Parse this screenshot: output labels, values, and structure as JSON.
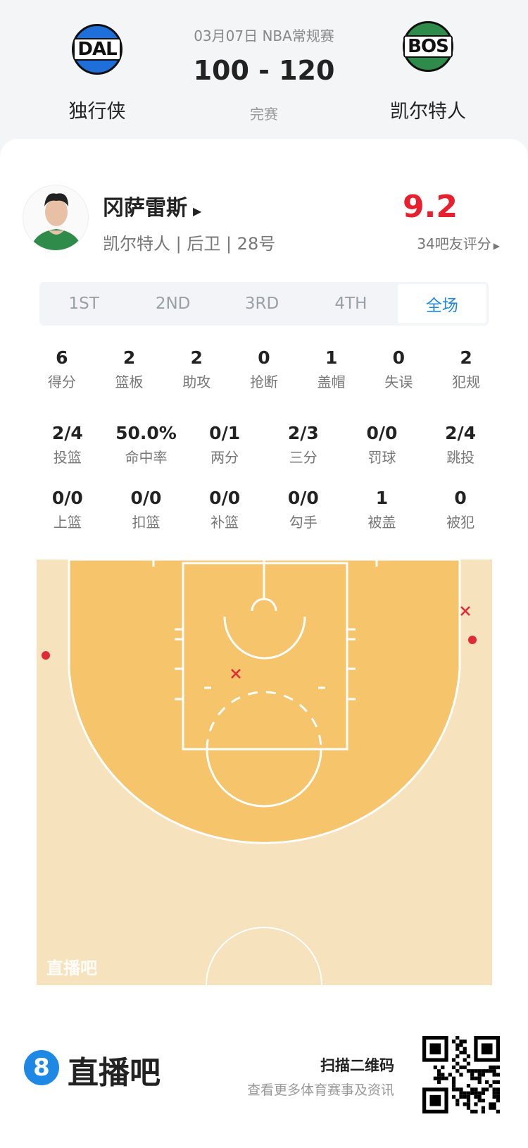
{
  "match": {
    "date_league": "03月07日 NBA常规赛",
    "score": "100 - 120",
    "status": "完赛",
    "home": {
      "abbr": "DAL",
      "name": "独行侠",
      "color": "#1e6fd9"
    },
    "away": {
      "abbr": "BOS",
      "name": "凯尔特人",
      "color": "#2e8b4a"
    }
  },
  "player": {
    "name": "冈萨雷斯",
    "info": "凯尔特人 | 后卫 | 28号",
    "rating": "9.2",
    "rating_label": "34吧友评分",
    "rating_color": "#e8202e"
  },
  "tabs": [
    {
      "label": "1ST"
    },
    {
      "label": "2ND"
    },
    {
      "label": "3RD"
    },
    {
      "label": "4TH"
    },
    {
      "label": "全场",
      "active": true
    }
  ],
  "stats_row1": [
    {
      "v": "6",
      "l": "得分"
    },
    {
      "v": "2",
      "l": "篮板"
    },
    {
      "v": "2",
      "l": "助攻"
    },
    {
      "v": "0",
      "l": "抢断"
    },
    {
      "v": "1",
      "l": "盖帽"
    },
    {
      "v": "0",
      "l": "失误"
    },
    {
      "v": "2",
      "l": "犯规"
    }
  ],
  "stats_row2": [
    {
      "v": "2/4",
      "l": "投篮"
    },
    {
      "v": "50.0%",
      "l": "命中率"
    },
    {
      "v": "0/1",
      "l": "两分"
    },
    {
      "v": "2/3",
      "l": "三分"
    },
    {
      "v": "0/0",
      "l": "罚球"
    },
    {
      "v": "2/4",
      "l": "跳投"
    }
  ],
  "stats_row3": [
    {
      "v": "0/0",
      "l": "上篮"
    },
    {
      "v": "0/0",
      "l": "扣篮"
    },
    {
      "v": "0/0",
      "l": "补篮"
    },
    {
      "v": "0/0",
      "l": "勾手"
    },
    {
      "v": "1",
      "l": "被盖"
    },
    {
      "v": "0",
      "l": "被犯"
    }
  ],
  "shot_chart": {
    "made_marker": "dot",
    "missed_marker": "x",
    "marker_color": "#e02a35",
    "watermark": "直播吧",
    "shots": [
      {
        "result": "made",
        "type": "三分"
      },
      {
        "result": "missed",
        "type": "三分"
      },
      {
        "result": "made",
        "type": "三分"
      },
      {
        "result": "missed",
        "type": "两分"
      }
    ]
  },
  "footer": {
    "brand": "直播吧",
    "brand_mark": "8",
    "brand_color": "#1e88e5",
    "qr_title": "扫描二维码",
    "qr_sub": "查看更多体育赛事及资讯"
  }
}
